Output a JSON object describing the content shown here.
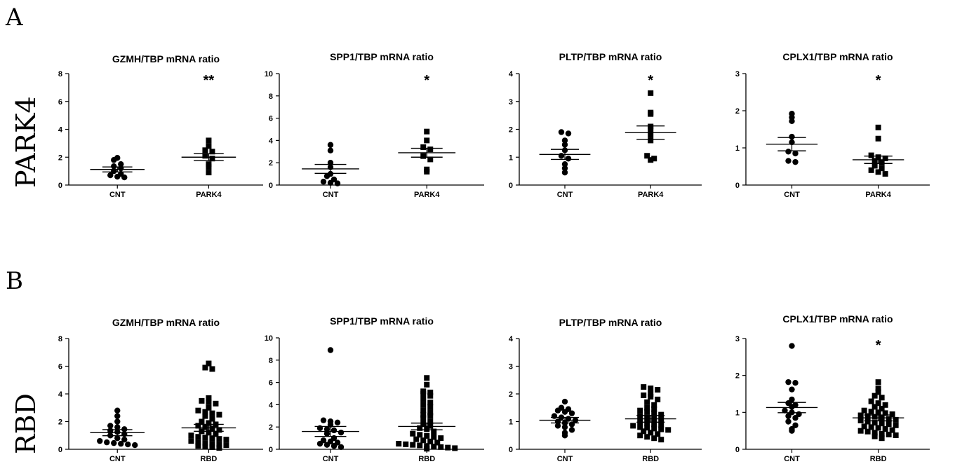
{
  "panels": [
    {
      "letter": "A",
      "row_label": "PARK4"
    },
    {
      "letter": "B",
      "row_label": "RBD"
    }
  ],
  "chart_data": [
    {
      "type": "scatter",
      "title": "GZMH/TBP mRNA ratio",
      "ylim": [
        0,
        8
      ],
      "yticks": [
        0,
        2,
        4,
        6,
        8
      ],
      "categories": [
        "CNT",
        "PARK4"
      ],
      "annotation": "**",
      "series": [
        {
          "marker": "circle",
          "points": [
            1.95,
            1.8,
            1.5,
            1.35,
            1.2,
            1.0,
            0.8,
            0.7,
            0.6,
            0.55
          ],
          "mean": 1.12,
          "sem_upper": 1.3
        },
        {
          "marker": "square",
          "points": [
            3.2,
            2.8,
            2.5,
            2.4,
            2.1,
            1.9,
            1.5,
            1.3,
            0.9
          ],
          "mean": 2.0,
          "sem_upper": 2.25
        }
      ]
    },
    {
      "type": "scatter",
      "title": "SPP1/TBP mRNA ratio",
      "ylim": [
        0,
        10
      ],
      "yticks": [
        0,
        2,
        4,
        6,
        8,
        10
      ],
      "categories": [
        "CNT",
        "PARK4"
      ],
      "annotation": "*",
      "series": [
        {
          "marker": "circle",
          "points": [
            3.6,
            3.1,
            2.0,
            1.6,
            1.0,
            0.8,
            0.5,
            0.3,
            0.2,
            0.15
          ],
          "mean": 1.45,
          "sem_upper": 1.85
        },
        {
          "marker": "square",
          "points": [
            4.8,
            4.0,
            3.4,
            3.2,
            2.6,
            2.3,
            1.4,
            1.2
          ],
          "mean": 2.9,
          "sem_upper": 3.3
        }
      ]
    },
    {
      "type": "scatter",
      "title": "PLTP/TBP mRNA ratio",
      "ylim": [
        0,
        4
      ],
      "yticks": [
        0,
        1,
        2,
        3,
        4
      ],
      "categories": [
        "CNT",
        "PARK4"
      ],
      "annotation": "*",
      "series": [
        {
          "marker": "circle",
          "points": [
            1.9,
            1.85,
            1.6,
            1.45,
            1.25,
            1.05,
            0.95,
            0.75,
            0.6,
            0.45
          ],
          "mean": 1.1,
          "sem_upper": 1.28
        },
        {
          "marker": "square",
          "points": [
            3.3,
            2.6,
            2.55,
            2.1,
            2.0,
            1.8,
            1.6,
            1.05,
            0.95,
            0.9
          ],
          "mean": 1.88,
          "sem_upper": 2.12
        }
      ]
    },
    {
      "type": "scatter",
      "title": "CPLX1/TBP mRNA ratio",
      "ylim": [
        0,
        3
      ],
      "yticks": [
        0,
        1,
        2,
        3
      ],
      "categories": [
        "CNT",
        "PARK4"
      ],
      "annotation": "*",
      "series": [
        {
          "marker": "circle",
          "points": [
            1.92,
            1.82,
            1.72,
            1.3,
            1.15,
            0.9,
            0.85,
            0.65,
            0.62
          ],
          "mean": 1.1,
          "sem_upper": 1.28
        },
        {
          "marker": "square",
          "points": [
            1.55,
            1.25,
            0.8,
            0.75,
            0.72,
            0.65,
            0.6,
            0.52,
            0.45,
            0.4,
            0.35,
            0.3
          ],
          "mean": 0.68,
          "sem_upper": 0.78
        }
      ]
    },
    {
      "type": "scatter",
      "title": "GZMH/TBP mRNA ratio",
      "ylim": [
        0,
        8
      ],
      "yticks": [
        0,
        2,
        4,
        6,
        8
      ],
      "categories": [
        "CNT",
        "RBD"
      ],
      "annotation": "",
      "series": [
        {
          "marker": "circle",
          "points": [
            2.8,
            2.4,
            2.0,
            1.7,
            1.6,
            1.45,
            1.35,
            1.25,
            1.1,
            1.0,
            0.8,
            0.7,
            0.6,
            0.5,
            0.45,
            0.4,
            0.35,
            0.3
          ],
          "mean": 1.2,
          "sem_upper": 1.42
        },
        {
          "marker": "square",
          "points": [
            6.2,
            5.9,
            5.8,
            3.7,
            3.5,
            3.4,
            3.3,
            3.0,
            2.8,
            2.7,
            2.6,
            2.5,
            2.4,
            2.2,
            2.0,
            1.9,
            1.8,
            1.7,
            1.6,
            1.5,
            1.4,
            1.3,
            1.2,
            1.1,
            1.0,
            0.9,
            0.85,
            0.8,
            0.75,
            0.7,
            0.6,
            0.5,
            0.45,
            0.4,
            0.35,
            0.3,
            0.25,
            0.2,
            0.15,
            0.1
          ],
          "mean": 1.55,
          "sem_upper": 1.8
        }
      ]
    },
    {
      "type": "scatter",
      "title": "SPP1/TBP mRNA ratio",
      "ylim": [
        0,
        10
      ],
      "yticks": [
        0,
        2,
        4,
        6,
        8,
        10
      ],
      "categories": [
        "CNT",
        "RBD"
      ],
      "annotation": "",
      "series": [
        {
          "marker": "circle",
          "points": [
            8.9,
            2.6,
            2.5,
            2.4,
            2.2,
            1.9,
            1.8,
            1.7,
            1.5,
            1.4,
            1.0,
            0.8,
            0.7,
            0.6,
            0.5,
            0.4,
            0.3,
            0.2
          ],
          "mean": 1.6,
          "sem_upper": 2.05
        },
        {
          "marker": "square",
          "points": [
            6.4,
            5.8,
            5.2,
            5.1,
            5.0,
            4.8,
            4.5,
            4.2,
            4.0,
            3.8,
            3.5,
            3.3,
            3.1,
            3.0,
            2.8,
            2.5,
            2.3,
            2.1,
            1.9,
            1.8,
            1.6,
            1.4,
            1.3,
            1.2,
            1.1,
            1.0,
            0.9,
            0.8,
            0.7,
            0.6,
            0.5,
            0.45,
            0.4,
            0.35,
            0.3,
            0.25,
            0.2,
            0.15,
            0.1,
            0.05
          ],
          "mean": 2.05,
          "sem_upper": 2.35
        }
      ]
    },
    {
      "type": "scatter",
      "title": "PLTP/TBP mRNA ratio",
      "ylim": [
        0,
        4
      ],
      "yticks": [
        0,
        1,
        2,
        3,
        4
      ],
      "categories": [
        "CNT",
        "RBD"
      ],
      "annotation": "",
      "series": [
        {
          "marker": "circle",
          "points": [
            1.72,
            1.5,
            1.45,
            1.4,
            1.35,
            1.3,
            1.2,
            1.15,
            1.1,
            1.05,
            1.0,
            0.95,
            0.9,
            0.85,
            0.8,
            0.7,
            0.6,
            0.5
          ],
          "mean": 1.05,
          "sem_upper": 1.15
        },
        {
          "marker": "square",
          "points": [
            2.25,
            2.2,
            2.15,
            2.0,
            1.95,
            1.9,
            1.8,
            1.7,
            1.6,
            1.5,
            1.45,
            1.4,
            1.35,
            1.3,
            1.25,
            1.2,
            1.15,
            1.1,
            1.05,
            1.0,
            0.95,
            0.9,
            0.88,
            0.85,
            0.8,
            0.78,
            0.75,
            0.72,
            0.7,
            0.65,
            0.6,
            0.55,
            0.5,
            0.45,
            0.4,
            0.35
          ],
          "mean": 1.1,
          "sem_upper": 1.22
        }
      ]
    },
    {
      "type": "scatter",
      "title": "CPLX1/TBP mRNA ratio",
      "ylim": [
        0,
        3
      ],
      "yticks": [
        0,
        1,
        2,
        3
      ],
      "categories": [
        "CNT",
        "RBD"
      ],
      "annotation": "*",
      "series": [
        {
          "marker": "circle",
          "points": [
            2.8,
            1.82,
            1.8,
            1.62,
            1.35,
            1.25,
            1.2,
            1.15,
            1.05,
            1.0,
            0.95,
            0.9,
            0.85,
            0.75,
            0.65,
            0.55,
            0.5
          ],
          "mean": 1.13,
          "sem_upper": 1.27
        },
        {
          "marker": "square",
          "points": [
            1.82,
            1.65,
            1.55,
            1.45,
            1.4,
            1.3,
            1.25,
            1.2,
            1.15,
            1.1,
            1.05,
            1.02,
            1.0,
            0.98,
            0.95,
            0.92,
            0.9,
            0.88,
            0.85,
            0.82,
            0.8,
            0.78,
            0.75,
            0.72,
            0.7,
            0.68,
            0.65,
            0.62,
            0.6,
            0.58,
            0.55,
            0.52,
            0.5,
            0.48,
            0.45,
            0.42,
            0.4,
            0.38,
            0.35,
            0.3
          ],
          "mean": 0.85,
          "sem_upper": 0.93
        }
      ]
    }
  ]
}
